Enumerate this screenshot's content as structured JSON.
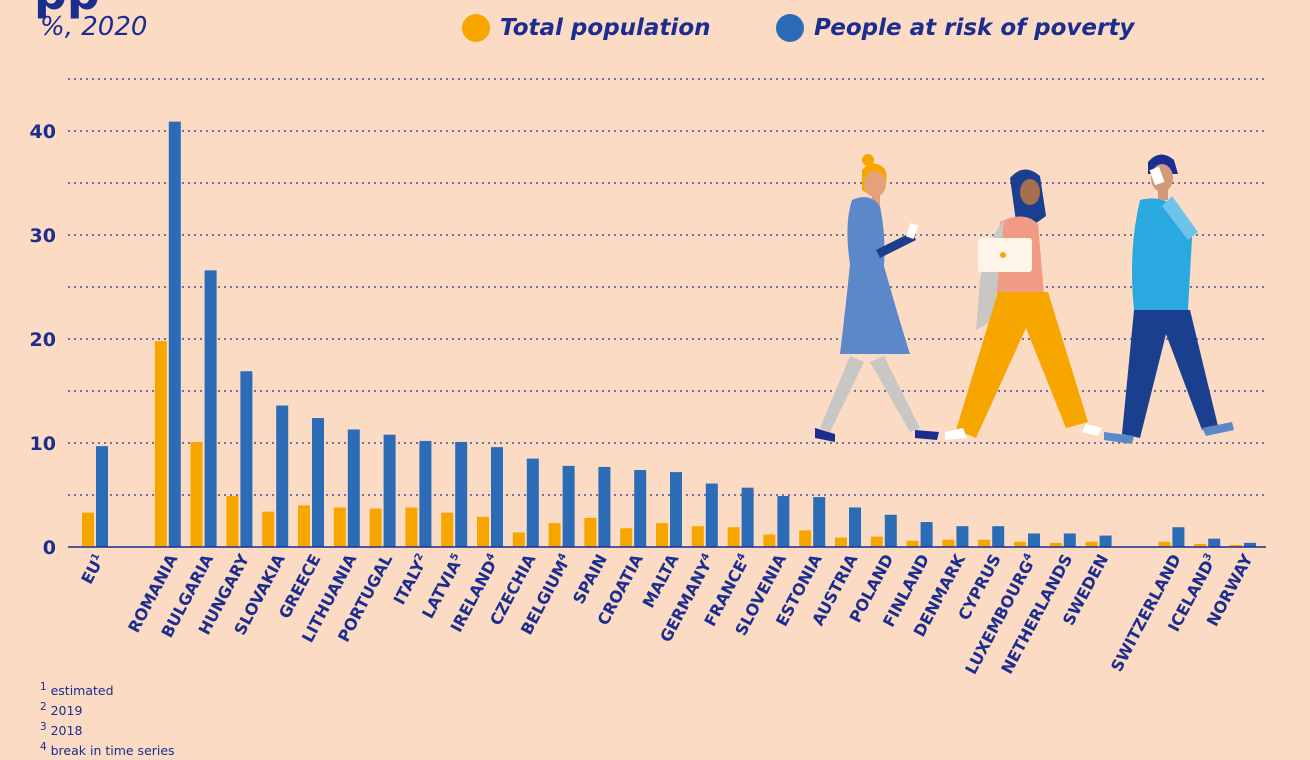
{
  "title_fragment": "pp",
  "subtitle": "%, 2020",
  "legend": [
    {
      "label": "Total population",
      "color": "#f7a600"
    },
    {
      "label": "People at risk of poverty",
      "color": "#2c6bb6"
    }
  ],
  "footnotes": [
    {
      "marker": "1",
      "text": "estimated"
    },
    {
      "marker": "2",
      "text": "2019"
    },
    {
      "marker": "3",
      "text": "2018"
    },
    {
      "marker": "4",
      "text": "break in time series"
    }
  ],
  "chart_data": {
    "type": "bar",
    "ylim": [
      0,
      45
    ],
    "yticks": [
      0,
      10,
      20,
      30,
      40
    ],
    "gridlines": "dotted, every 5",
    "categories": [
      {
        "label": "EU",
        "sup": "1",
        "group": 0
      },
      {
        "label": "ROMANIA",
        "sup": "",
        "group": 1
      },
      {
        "label": "BULGARIA",
        "sup": "",
        "group": 1
      },
      {
        "label": "HUNGARY",
        "sup": "",
        "group": 1
      },
      {
        "label": "SLOVAKIA",
        "sup": "",
        "group": 1
      },
      {
        "label": "GREECE",
        "sup": "",
        "group": 1
      },
      {
        "label": "LITHUANIA",
        "sup": "",
        "group": 1
      },
      {
        "label": "PORTUGAL",
        "sup": "",
        "group": 1
      },
      {
        "label": "ITALY",
        "sup": "2",
        "group": 1
      },
      {
        "label": "LATVIA",
        "sup": "5",
        "group": 1
      },
      {
        "label": "IRELAND",
        "sup": "4",
        "group": 1
      },
      {
        "label": "CZECHIA",
        "sup": "",
        "group": 1
      },
      {
        "label": "BELGIUM",
        "sup": "4",
        "group": 1
      },
      {
        "label": "SPAIN",
        "sup": "",
        "group": 1
      },
      {
        "label": "CROATIA",
        "sup": "",
        "group": 1
      },
      {
        "label": "MALTA",
        "sup": "",
        "group": 1
      },
      {
        "label": "GERMANY",
        "sup": "4",
        "group": 1
      },
      {
        "label": "FRANCE",
        "sup": "4",
        "group": 1
      },
      {
        "label": "SLOVENIA",
        "sup": "",
        "group": 1
      },
      {
        "label": "ESTONIA",
        "sup": "",
        "group": 1
      },
      {
        "label": "AUSTRIA",
        "sup": "",
        "group": 1
      },
      {
        "label": "POLAND",
        "sup": "",
        "group": 1
      },
      {
        "label": "FINLAND",
        "sup": "",
        "group": 1
      },
      {
        "label": "DENMARK",
        "sup": "",
        "group": 1
      },
      {
        "label": "CYPRUS",
        "sup": "",
        "group": 1
      },
      {
        "label": "LUXEMBOURG",
        "sup": "4",
        "group": 1
      },
      {
        "label": "NETHERLANDS",
        "sup": "",
        "group": 1
      },
      {
        "label": "SWEDEN",
        "sup": "",
        "group": 1
      },
      {
        "label": "SWITZERLAND",
        "sup": "",
        "group": 2
      },
      {
        "label": "ICELAND",
        "sup": "3",
        "group": 2
      },
      {
        "label": "NORWAY",
        "sup": "",
        "group": 2
      }
    ],
    "series": [
      {
        "name": "Total population",
        "color": "#f7a600",
        "values": [
          3.3,
          19.8,
          10.1,
          4.9,
          3.4,
          4.0,
          3.8,
          3.7,
          3.8,
          3.3,
          2.9,
          1.4,
          2.3,
          2.8,
          1.8,
          2.3,
          2.0,
          1.9,
          1.2,
          1.6,
          0.9,
          1.0,
          0.6,
          0.7,
          0.7,
          0.5,
          0.4,
          0.5,
          0.5,
          0.3,
          0.2
        ]
      },
      {
        "name": "People at risk of poverty",
        "color": "#2c6bb6",
        "values": [
          9.7,
          40.9,
          26.6,
          16.9,
          13.6,
          12.4,
          11.3,
          10.8,
          10.2,
          10.1,
          9.6,
          8.5,
          7.8,
          7.7,
          7.4,
          7.2,
          6.1,
          5.7,
          4.9,
          4.8,
          3.8,
          3.1,
          2.4,
          2.0,
          2.0,
          1.3,
          1.3,
          1.1,
          1.9,
          0.8,
          0.4
        ]
      }
    ]
  }
}
